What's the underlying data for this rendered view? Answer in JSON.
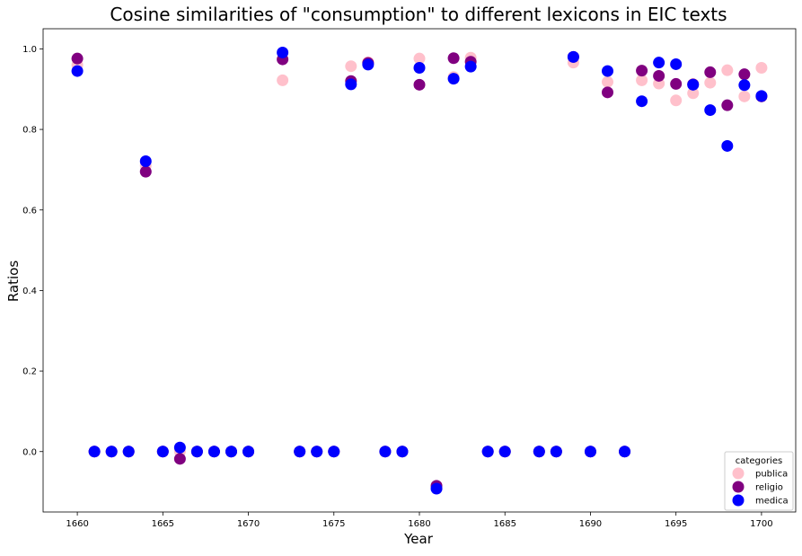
{
  "chart_data": {
    "type": "scatter",
    "title": "Cosine similarities of \"consumption\" to different lexicons in EIC texts",
    "xlabel": "Year",
    "ylabel": "Ratios",
    "xlim": [
      1658,
      1702
    ],
    "ylim": [
      -0.15,
      1.05
    ],
    "xticks": [
      1660,
      1665,
      1670,
      1675,
      1680,
      1685,
      1690,
      1695,
      1700
    ],
    "yticks": [
      0.0,
      0.2,
      0.4,
      0.6,
      0.8,
      1.0
    ],
    "xtick_labels": [
      "1660",
      "1665",
      "1670",
      "1675",
      "1680",
      "1685",
      "1690",
      "1695",
      "1700"
    ],
    "ytick_labels": [
      "0.0",
      "0.2",
      "0.4",
      "0.6",
      "0.8",
      "1.0"
    ],
    "grid": false,
    "legend": {
      "title": "categories",
      "placement": "lower-right"
    },
    "series": [
      {
        "name": "publica",
        "color": "#ffc0cb",
        "points": [
          [
            1660,
            0.96
          ],
          [
            1661,
            0.0
          ],
          [
            1662,
            0.0
          ],
          [
            1663,
            0.0
          ],
          [
            1664,
            0.71
          ],
          [
            1665,
            0.0
          ],
          [
            1666,
            0.0
          ],
          [
            1667,
            0.0
          ],
          [
            1668,
            0.0
          ],
          [
            1669,
            0.0
          ],
          [
            1670,
            0.0
          ],
          [
            1672,
            0.922
          ],
          [
            1673,
            0.0
          ],
          [
            1674,
            0.0
          ],
          [
            1675,
            0.0
          ],
          [
            1676,
            0.957
          ],
          [
            1677,
            0.967
          ],
          [
            1678,
            0.0
          ],
          [
            1679,
            0.0
          ],
          [
            1680,
            0.976
          ],
          [
            1681,
            -0.09
          ],
          [
            1682,
            0.93
          ],
          [
            1683,
            0.978
          ],
          [
            1684,
            0.0
          ],
          [
            1685,
            0.0
          ],
          [
            1687,
            0.0
          ],
          [
            1688,
            0.0
          ],
          [
            1689,
            0.966
          ],
          [
            1690,
            0.0
          ],
          [
            1691,
            0.918
          ],
          [
            1692,
            0.0
          ],
          [
            1693,
            0.922
          ],
          [
            1694,
            0.914
          ],
          [
            1695,
            0.872
          ],
          [
            1696,
            0.89
          ],
          [
            1697,
            0.916
          ],
          [
            1698,
            0.947
          ],
          [
            1699,
            0.882
          ],
          [
            1700,
            0.953
          ]
        ]
      },
      {
        "name": "religio",
        "color": "#800080",
        "points": [
          [
            1660,
            0.976
          ],
          [
            1661,
            0.0
          ],
          [
            1662,
            0.0
          ],
          [
            1663,
            0.0
          ],
          [
            1664,
            0.695
          ],
          [
            1665,
            0.0
          ],
          [
            1666,
            -0.018
          ],
          [
            1667,
            0.0
          ],
          [
            1668,
            0.0
          ],
          [
            1669,
            0.0
          ],
          [
            1670,
            0.0
          ],
          [
            1672,
            0.974
          ],
          [
            1673,
            0.0
          ],
          [
            1674,
            0.0
          ],
          [
            1675,
            0.0
          ],
          [
            1676,
            0.92
          ],
          [
            1677,
            0.965
          ],
          [
            1678,
            0.0
          ],
          [
            1679,
            0.0
          ],
          [
            1680,
            0.911
          ],
          [
            1681,
            -0.085
          ],
          [
            1682,
            0.977
          ],
          [
            1683,
            0.968
          ],
          [
            1684,
            0.0
          ],
          [
            1685,
            0.0
          ],
          [
            1687,
            0.0
          ],
          [
            1688,
            0.0
          ],
          [
            1689,
            0.98
          ],
          [
            1690,
            0.0
          ],
          [
            1691,
            0.892
          ],
          [
            1692,
            0.0
          ],
          [
            1693,
            0.946
          ],
          [
            1694,
            0.933
          ],
          [
            1695,
            0.913
          ],
          [
            1696,
            0.912
          ],
          [
            1697,
            0.942
          ],
          [
            1698,
            0.86
          ],
          [
            1699,
            0.937
          ],
          [
            1700,
            0.882
          ]
        ]
      },
      {
        "name": "medica",
        "color": "#0000ff",
        "points": [
          [
            1660,
            0.945
          ],
          [
            1661,
            0.0
          ],
          [
            1662,
            0.0
          ],
          [
            1663,
            0.0
          ],
          [
            1664,
            0.721
          ],
          [
            1665,
            0.0
          ],
          [
            1666,
            0.01
          ],
          [
            1667,
            0.0
          ],
          [
            1668,
            0.0
          ],
          [
            1669,
            0.0
          ],
          [
            1670,
            0.0
          ],
          [
            1672,
            0.991
          ],
          [
            1673,
            0.0
          ],
          [
            1674,
            0.0
          ],
          [
            1675,
            0.0
          ],
          [
            1676,
            0.912
          ],
          [
            1677,
            0.961
          ],
          [
            1678,
            0.0
          ],
          [
            1679,
            0.0
          ],
          [
            1680,
            0.953
          ],
          [
            1681,
            -0.092
          ],
          [
            1682,
            0.926
          ],
          [
            1683,
            0.956
          ],
          [
            1684,
            0.0
          ],
          [
            1685,
            0.0
          ],
          [
            1687,
            0.0
          ],
          [
            1688,
            0.0
          ],
          [
            1689,
            0.98
          ],
          [
            1690,
            0.0
          ],
          [
            1691,
            0.945
          ],
          [
            1692,
            0.0
          ],
          [
            1693,
            0.87
          ],
          [
            1694,
            0.966
          ],
          [
            1695,
            0.962
          ],
          [
            1696,
            0.911
          ],
          [
            1697,
            0.848
          ],
          [
            1698,
            0.759
          ],
          [
            1699,
            0.91
          ],
          [
            1700,
            0.883
          ]
        ]
      }
    ]
  }
}
